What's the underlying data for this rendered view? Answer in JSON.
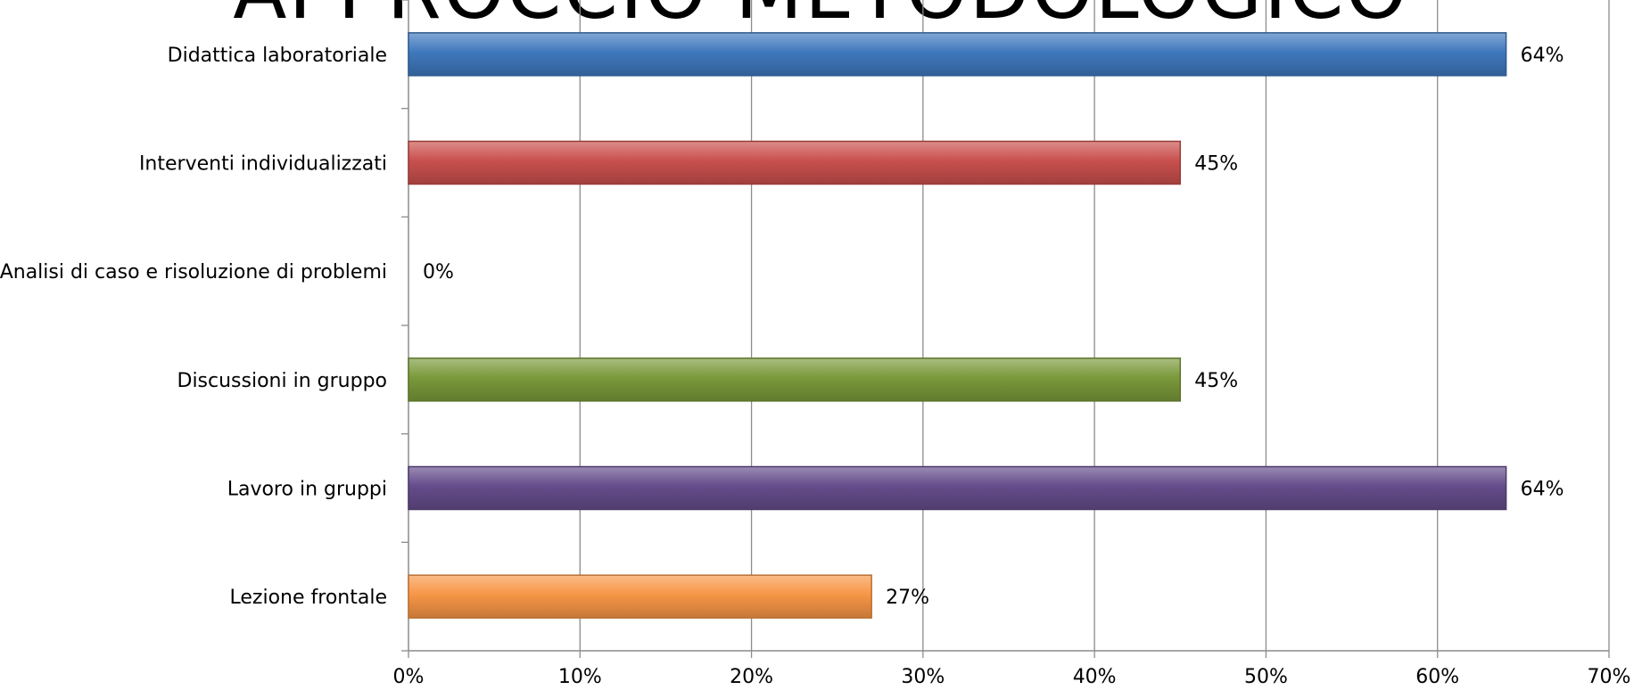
{
  "chart_data": {
    "type": "bar",
    "orientation": "horizontal",
    "title": "APPROCCIO METODOLOGICO",
    "categories": [
      "Didattica laboratoriale",
      "Interventi individualizzati",
      "Analisi di caso e risoluzione di problemi",
      "Discussioni in gruppo",
      "Lavoro in gruppi",
      "Lezione frontale"
    ],
    "values": [
      0.64,
      0.45,
      0.0,
      0.45,
      0.64,
      0.27
    ],
    "value_labels": [
      "64%",
      "45%",
      "0%",
      "45%",
      "64%",
      "27%"
    ],
    "colors": [
      "#3f78bd",
      "#c9504d",
      "#9bbb59",
      "#7a9a3b",
      "#654c8b",
      "#f79646"
    ],
    "x_ticks": [
      0,
      0.1,
      0.2,
      0.3,
      0.4,
      0.5,
      0.6,
      0.7
    ],
    "x_tick_labels": [
      "0%",
      "10%",
      "20%",
      "30%",
      "40%",
      "50%",
      "60%",
      "70%"
    ],
    "xlim": [
      0,
      0.7
    ],
    "xlabel": "",
    "ylabel": "",
    "grid": true,
    "legend": "none"
  }
}
